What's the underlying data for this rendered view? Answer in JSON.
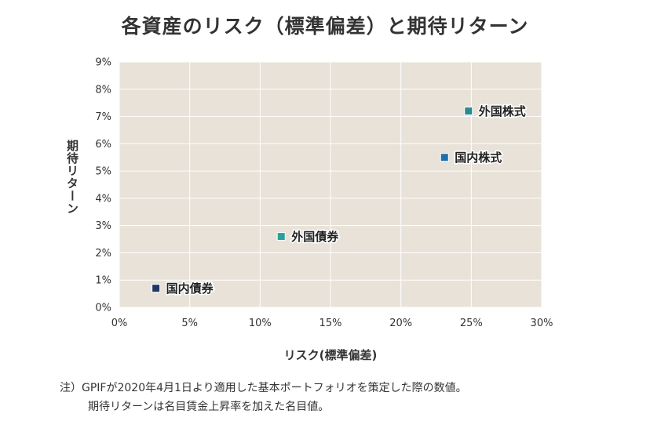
{
  "chart_data": {
    "type": "scatter",
    "title": "各資産のリスク（標準偏差）と期待リターン",
    "xlabel": "リスク(標準偏差)",
    "ylabel": "期待リターン",
    "xlim": [
      0,
      30
    ],
    "ylim": [
      0,
      9
    ],
    "xticks": [
      0,
      5,
      10,
      15,
      20,
      25,
      30
    ],
    "yticks": [
      0,
      1,
      2,
      3,
      4,
      5,
      6,
      7,
      8,
      9
    ],
    "xtick_labels": [
      "0%",
      "5%",
      "10%",
      "15%",
      "20%",
      "25%",
      "30%"
    ],
    "ytick_labels": [
      "0%",
      "1%",
      "2%",
      "3%",
      "4%",
      "5%",
      "6%",
      "7%",
      "8%",
      "9%"
    ],
    "grid": true,
    "plot_background": "#e8e2d8",
    "points": [
      {
        "label": "国内債券",
        "x": 2.6,
        "y": 0.7,
        "color": "#1f3864"
      },
      {
        "label": "外国債券",
        "x": 11.5,
        "y": 2.6,
        "color": "#2aa198"
      },
      {
        "label": "国内株式",
        "x": 23.1,
        "y": 5.5,
        "color": "#1f6fad"
      },
      {
        "label": "外国株式",
        "x": 24.8,
        "y": 7.2,
        "color": "#2a8a8c"
      }
    ]
  },
  "notes": {
    "line1": "注）GPIFが2020年4月1日より適用した基本ポートフォリオを策定した際の数値。",
    "line2": "期待リターンは名目賃金上昇率を加えた名目値。"
  }
}
